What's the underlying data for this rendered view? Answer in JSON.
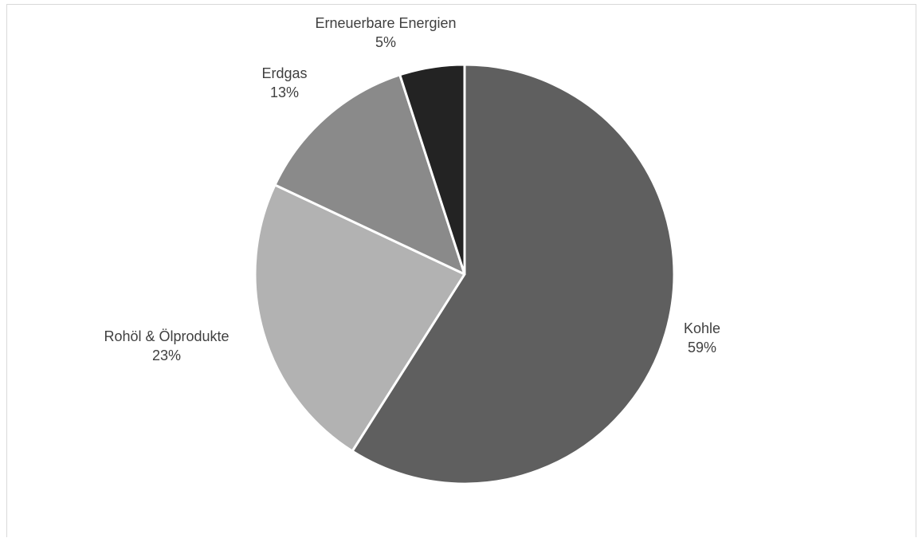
{
  "chart_data": {
    "type": "pie",
    "title": "",
    "slices": [
      {
        "name": "Kohle",
        "value": 59,
        "label": "59%",
        "color": "#5f5f5f"
      },
      {
        "name": "Rohöl & Ölprodukte",
        "value": 23,
        "label": "23%",
        "color": "#b2b2b2"
      },
      {
        "name": "Erdgas",
        "value": 13,
        "label": "13%",
        "color": "#8a8a8a"
      },
      {
        "name": "Erneuerbare Energien",
        "value": 5,
        "label": "5%",
        "color": "#232323"
      }
    ],
    "start_angle_deg": 0,
    "direction": "clockwise",
    "slice_border_color": "#ffffff"
  }
}
